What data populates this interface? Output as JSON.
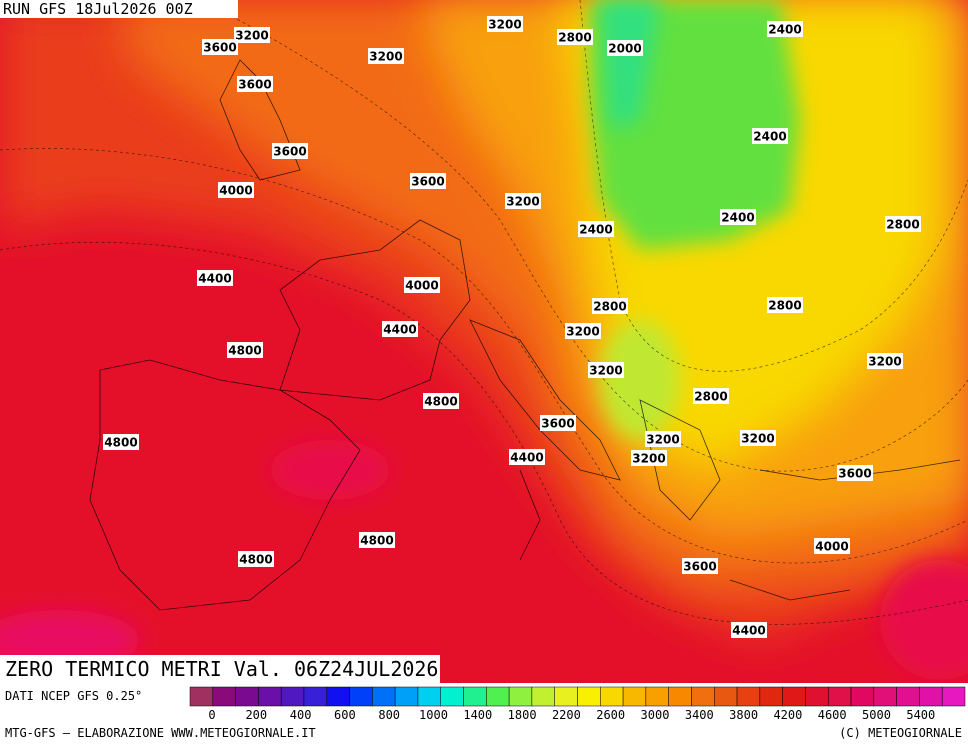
{
  "header": {
    "run": "RUN GFS 18Jul2026 00Z"
  },
  "map": {
    "contour_labels": [
      "3200",
      "3600",
      "3200",
      "3200",
      "2800",
      "2000",
      "2400",
      "3600",
      "2400",
      "3600",
      "3600",
      "4000",
      "3200",
      "2400",
      "2800",
      "2400",
      "4400",
      "4000",
      "2800",
      "2800",
      "4400",
      "3200",
      "4800",
      "3200",
      "3200",
      "2800",
      "4800",
      "3600",
      "4800",
      "3200",
      "3200",
      "4400",
      "3200",
      "3600",
      "4800",
      "4000",
      "4800",
      "3600",
      "4400"
    ]
  },
  "footer": {
    "title": "ZERO TERMICO METRI Val. 06Z24JUL2026",
    "source": "DATI NCEP GFS 0.25°",
    "credit": "MTG-GFS — ELABORAZIONE WWW.METEOGIORNALE.IT",
    "copyright": "(C) METEOGIORNALE"
  },
  "legend": {
    "ticks": [
      "0",
      "200",
      "400",
      "600",
      "800",
      "1000",
      "1400",
      "1800",
      "2200",
      "2600",
      "3000",
      "3400",
      "3800",
      "4200",
      "4600",
      "5000",
      "5400"
    ]
  }
}
